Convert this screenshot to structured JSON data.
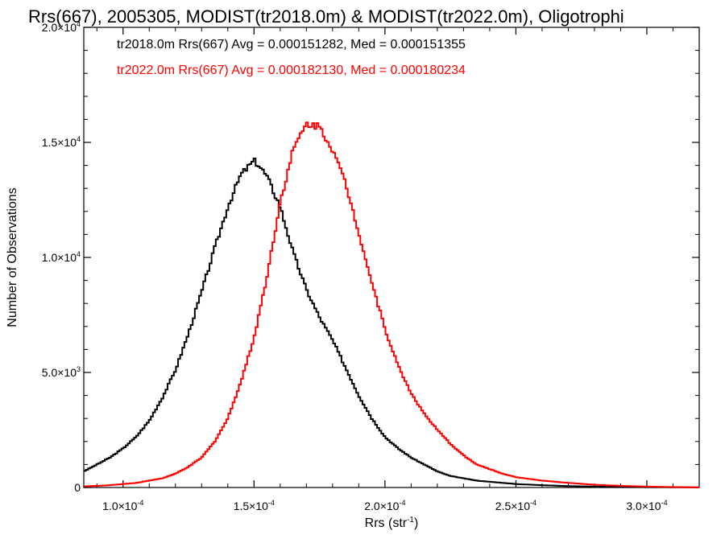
{
  "chart_data": {
    "type": "line",
    "title": "Rrs(667), 2005305, MODIST(tr2018.0m) & MODIST(tr2022.0m), Oligotrophi",
    "xlabel": "Rrs (str",
    "xlabel_sup": "-1",
    "xlabel_suffix": ")",
    "ylabel": "Number of Observations",
    "xlim": [
      8.5e-05,
      0.00032
    ],
    "ylim": [
      0,
      20000
    ],
    "x_ticks": [
      {
        "value": 0.0001,
        "mant": "1.0",
        "exp": "-4"
      },
      {
        "value": 0.00015,
        "mant": "1.5",
        "exp": "-4"
      },
      {
        "value": 0.0002,
        "mant": "2.0",
        "exp": "-4"
      },
      {
        "value": 0.00025,
        "mant": "2.5",
        "exp": "-4"
      },
      {
        "value": 0.0003,
        "mant": "3.0",
        "exp": "-4"
      }
    ],
    "y_ticks": [
      {
        "value": 0,
        "mant": "0",
        "exp": ""
      },
      {
        "value": 5000,
        "mant": "5.0",
        "exp": "3"
      },
      {
        "value": 10000,
        "mant": "1.0",
        "exp": "4"
      },
      {
        "value": 15000,
        "mant": "1.5",
        "exp": "4"
      },
      {
        "value": 20000,
        "mant": "2.0",
        "exp": "4"
      }
    ],
    "legend_placement": "top-left",
    "series": [
      {
        "name": "tr2018.0m Rrs(667) Avg = 0.000151282, Med = 0.000151355",
        "color": "#000000",
        "x": [
          8.5e-05,
          9e-05,
          9.5e-05,
          0.0001,
          0.000105,
          0.00011,
          0.000115,
          0.00012,
          0.000125,
          0.00013,
          0.000135,
          0.00014,
          0.000145,
          0.00015,
          0.000152,
          0.000155,
          0.00016,
          0.000165,
          0.00017,
          0.000175,
          0.00018,
          0.000185,
          0.00019,
          0.000195,
          0.0002,
          0.000205,
          0.00021,
          0.000215,
          0.00022,
          0.000225,
          0.00023,
          0.000235,
          0.00024,
          0.000245,
          0.00025,
          0.00026,
          0.00027,
          0.00028,
          0.00029,
          0.0003,
          0.00031,
          0.00032
        ],
        "values": [
          700,
          1000,
          1300,
          1700,
          2200,
          2900,
          3900,
          5100,
          6700,
          8500,
          10400,
          12200,
          13600,
          14200,
          14000,
          13500,
          12200,
          10200,
          8600,
          7400,
          6400,
          5200,
          4000,
          3000,
          2200,
          1700,
          1300,
          1000,
          700,
          500,
          400,
          300,
          250,
          200,
          150,
          100,
          60,
          40,
          20,
          15,
          10,
          5
        ]
      },
      {
        "name": "tr2022.0m Rrs(667) Avg = 0.000182130, Med = 0.000180234",
        "color": "#ff0000",
        "x": [
          8.5e-05,
          9e-05,
          9.5e-05,
          0.0001,
          0.000105,
          0.00011,
          0.000115,
          0.00012,
          0.000125,
          0.00013,
          0.000135,
          0.00014,
          0.000145,
          0.00015,
          0.000155,
          0.00016,
          0.000165,
          0.00017,
          0.000175,
          0.00018,
          0.000185,
          0.00019,
          0.000195,
          0.0002,
          0.000205,
          0.00021,
          0.000215,
          0.00022,
          0.000225,
          0.00023,
          0.000235,
          0.00024,
          0.000245,
          0.00025,
          0.00026,
          0.00027,
          0.00028,
          0.00029,
          0.0003,
          0.00031,
          0.00032
        ],
        "values": [
          50,
          70,
          100,
          150,
          200,
          300,
          400,
          600,
          900,
          1300,
          2000,
          3000,
          4600,
          6500,
          9200,
          12400,
          14700,
          15800,
          15700,
          14700,
          13200,
          11100,
          8900,
          6900,
          5300,
          4100,
          3200,
          2500,
          1900,
          1400,
          1000,
          800,
          600,
          450,
          300,
          200,
          120,
          70,
          40,
          20,
          5
        ]
      }
    ]
  }
}
